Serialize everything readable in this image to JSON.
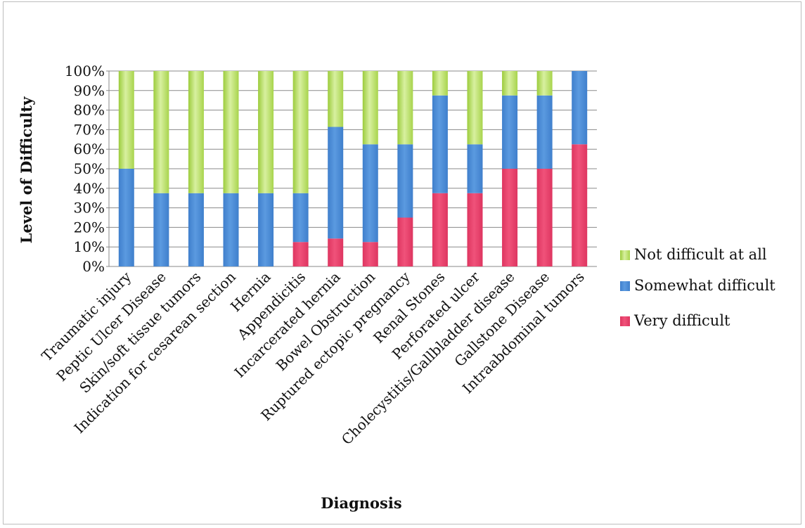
{
  "chart_data": {
    "type": "bar",
    "stacked": true,
    "normalized": true,
    "title": "",
    "xlabel": "Diagnosis",
    "ylabel": "Level of Difficulty",
    "ylim": [
      0,
      100
    ],
    "yticks": [
      "0%",
      "10%",
      "20%",
      "30%",
      "40%",
      "50%",
      "60%",
      "70%",
      "80%",
      "90%",
      "100%"
    ],
    "grid": true,
    "legend_position": "right",
    "categories": [
      "Traumatic injury",
      "Peptic Ulcer Disease",
      "Skin/soft tissue tumors",
      "Indication for cesarean section",
      "Hernia",
      "Appendicitis",
      "Incarcerated hernia",
      "Bowel Obstruction",
      "Ruptured ectopic pregnancy",
      "Renal Stones",
      "Perforated ulcer",
      "Cholecystitis/Gallbladder disease",
      "Gallstone Disease",
      "Intraabdominal tumors"
    ],
    "series": [
      {
        "name": "Very difficult",
        "color": "#e8416a",
        "values": [
          0,
          0,
          0,
          0,
          0,
          12.5,
          14.3,
          12.5,
          25,
          37.5,
          37.5,
          50,
          50,
          62.5
        ]
      },
      {
        "name": "Somewhat difficult",
        "color": "#4d8fd6",
        "values": [
          50,
          37.5,
          37.5,
          37.5,
          37.5,
          25,
          57.1,
          50,
          37.5,
          50,
          25,
          37.5,
          37.5,
          37.5
        ]
      },
      {
        "name": "Not difficult at all",
        "color": "#b4dc5a",
        "values": [
          50,
          62.5,
          62.5,
          62.5,
          62.5,
          62.5,
          28.6,
          37.5,
          37.5,
          12.5,
          37.5,
          12.5,
          12.5,
          0
        ]
      }
    ],
    "legend_order": [
      "Not difficult at all",
      "Somewhat difficult",
      "Very difficult"
    ]
  }
}
